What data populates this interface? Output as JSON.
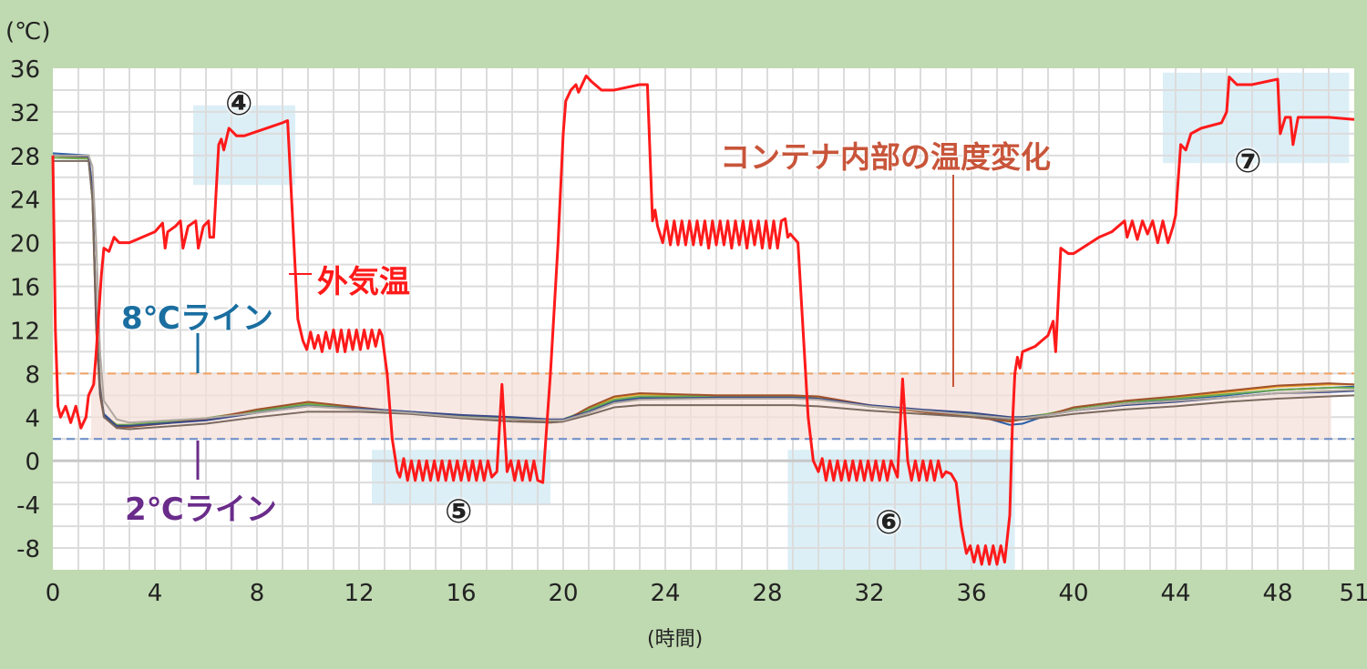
{
  "chart_data": {
    "type": "line",
    "ylabel": "(℃)",
    "xlabel": "(時間)",
    "xlim": [
      0,
      51
    ],
    "ylim": [
      -10,
      36
    ],
    "x_ticks": [
      0,
      4,
      8,
      12,
      16,
      20,
      24,
      28,
      32,
      36,
      40,
      44,
      48,
      51
    ],
    "y_ticks": [
      36,
      32,
      28,
      24,
      20,
      16,
      12,
      8,
      4,
      0,
      -4,
      -8
    ],
    "grid": true,
    "reference_lines": [
      {
        "label": "8℃ライン",
        "value": 8,
        "color": "#f0a060",
        "label_color": "#1a6ea0"
      },
      {
        "label": "2℃ライン",
        "value": 2,
        "color": "#6a8cc8",
        "label_color": "#6a2c8a"
      }
    ],
    "shaded_band": {
      "from": 2,
      "to": 8,
      "x_from": 1.5,
      "x_to": 50.1,
      "color": "#f5e0da"
    },
    "highlight_regions": [
      {
        "label": "④",
        "x": [
          5.5,
          9.5
        ],
        "y": [
          25.3,
          32.6
        ]
      },
      {
        "label": "⑤",
        "x": [
          12.5,
          19.5
        ],
        "y": [
          -4,
          1
        ]
      },
      {
        "label": "⑥",
        "x": [
          28.8,
          37.7
        ],
        "y": [
          -10,
          1
        ]
      },
      {
        "label": "⑦",
        "x": [
          43.5,
          50.8
        ],
        "y": [
          27.3,
          35.6
        ]
      }
    ],
    "annotations": {
      "outside": "外気温",
      "container": "コンテナ内部の温度変化"
    },
    "outside_series": {
      "name": "外気温",
      "color": "#ff1a1a",
      "points": [
        [
          0,
          28
        ],
        [
          0.1,
          12
        ],
        [
          0.2,
          5
        ],
        [
          0.3,
          4
        ],
        [
          0.5,
          5
        ],
        [
          0.7,
          3.5
        ],
        [
          0.9,
          5
        ],
        [
          1.1,
          3
        ],
        [
          1.3,
          4
        ],
        [
          1.4,
          6
        ],
        [
          1.6,
          7
        ],
        [
          1.7,
          10
        ],
        [
          1.9,
          17
        ],
        [
          2.0,
          19.5
        ],
        [
          2.2,
          19.2
        ],
        [
          2.4,
          20.5
        ],
        [
          2.6,
          20
        ],
        [
          3,
          20
        ],
        [
          3.5,
          20.5
        ],
        [
          4,
          21
        ],
        [
          4.3,
          21.8
        ],
        [
          4.4,
          19.5
        ],
        [
          4.5,
          21
        ],
        [
          4.8,
          21.5
        ],
        [
          5,
          22
        ],
        [
          5.1,
          19.5
        ],
        [
          5.3,
          21.5
        ],
        [
          5.6,
          22
        ],
        [
          5.7,
          19.5
        ],
        [
          5.9,
          21.5
        ],
        [
          6.1,
          22
        ],
        [
          6.15,
          20.5
        ],
        [
          6.3,
          20.5
        ],
        [
          6.5,
          29
        ],
        [
          6.6,
          29.5
        ],
        [
          6.7,
          28.5
        ],
        [
          6.9,
          30.5
        ],
        [
          7.2,
          29.8
        ],
        [
          7.5,
          29.8
        ],
        [
          8,
          30.2
        ],
        [
          8.5,
          30.6
        ],
        [
          9,
          31
        ],
        [
          9.2,
          31.2
        ],
        [
          9.4,
          22
        ],
        [
          9.6,
          13
        ],
        [
          9.7,
          12
        ],
        [
          9.8,
          11
        ],
        [
          9.95,
          10.2
        ],
        [
          10.1,
          11.8
        ],
        [
          10.25,
          10.3
        ],
        [
          10.4,
          11.5
        ],
        [
          10.55,
          10
        ],
        [
          10.7,
          11.8
        ],
        [
          10.85,
          10.3
        ],
        [
          11,
          12
        ],
        [
          11.15,
          10
        ],
        [
          11.3,
          12
        ],
        [
          11.45,
          10
        ],
        [
          11.6,
          12
        ],
        [
          11.75,
          10.2
        ],
        [
          11.9,
          12
        ],
        [
          12.05,
          10.2
        ],
        [
          12.2,
          12
        ],
        [
          12.35,
          10.3
        ],
        [
          12.5,
          12
        ],
        [
          12.65,
          10.5
        ],
        [
          12.8,
          12
        ],
        [
          12.9,
          11.5
        ],
        [
          13.1,
          8
        ],
        [
          13.3,
          2
        ],
        [
          13.5,
          -1
        ],
        [
          13.6,
          -1.5
        ],
        [
          13.75,
          0.2
        ],
        [
          13.9,
          -1.8
        ],
        [
          14.05,
          0
        ],
        [
          14.2,
          -1.8
        ],
        [
          14.35,
          0
        ],
        [
          14.5,
          -1.8
        ],
        [
          14.65,
          0
        ],
        [
          14.8,
          -1.8
        ],
        [
          14.95,
          0
        ],
        [
          15.1,
          -1.8
        ],
        [
          15.25,
          0
        ],
        [
          15.4,
          -1.8
        ],
        [
          15.55,
          0
        ],
        [
          15.7,
          -1.8
        ],
        [
          15.85,
          0
        ],
        [
          16,
          -1.8
        ],
        [
          16.15,
          0
        ],
        [
          16.3,
          -1.8
        ],
        [
          16.45,
          0
        ],
        [
          16.6,
          -1.8
        ],
        [
          16.75,
          0
        ],
        [
          16.9,
          -1.8
        ],
        [
          17.05,
          0
        ],
        [
          17.2,
          -1.5
        ],
        [
          17.4,
          -1
        ],
        [
          17.6,
          7
        ],
        [
          17.8,
          -1
        ],
        [
          17.95,
          0
        ],
        [
          18.1,
          -1.8
        ],
        [
          18.25,
          0
        ],
        [
          18.4,
          -1.8
        ],
        [
          18.55,
          0
        ],
        [
          18.7,
          -1.8
        ],
        [
          18.85,
          0
        ],
        [
          19,
          -1.8
        ],
        [
          19.2,
          -2
        ],
        [
          19.5,
          8
        ],
        [
          19.8,
          20
        ],
        [
          20,
          30
        ],
        [
          20.1,
          33
        ],
        [
          20.3,
          34
        ],
        [
          20.5,
          34.5
        ],
        [
          20.6,
          33.8
        ],
        [
          20.9,
          35.3
        ],
        [
          21.1,
          34.8
        ],
        [
          21.5,
          34
        ],
        [
          22,
          34
        ],
        [
          23,
          34.5
        ],
        [
          23.3,
          34.5
        ],
        [
          23.5,
          22
        ],
        [
          23.6,
          23
        ],
        [
          23.7,
          21.5
        ],
        [
          23.9,
          20
        ],
        [
          24.05,
          22
        ],
        [
          24.2,
          19.8
        ],
        [
          24.35,
          22
        ],
        [
          24.5,
          19.8
        ],
        [
          24.65,
          22
        ],
        [
          24.8,
          19.8
        ],
        [
          24.95,
          22
        ],
        [
          25.1,
          19.8
        ],
        [
          25.25,
          22
        ],
        [
          25.4,
          19.8
        ],
        [
          25.55,
          22
        ],
        [
          25.7,
          19.5
        ],
        [
          25.85,
          22
        ],
        [
          26,
          19.8
        ],
        [
          26.15,
          22
        ],
        [
          26.3,
          19.8
        ],
        [
          26.45,
          22
        ],
        [
          26.6,
          19.5
        ],
        [
          26.75,
          22
        ],
        [
          26.9,
          19.8
        ],
        [
          27.05,
          22
        ],
        [
          27.2,
          19.5
        ],
        [
          27.35,
          22
        ],
        [
          27.5,
          19.8
        ],
        [
          27.65,
          22
        ],
        [
          27.8,
          19.5
        ],
        [
          27.95,
          22
        ],
        [
          28.1,
          19.5
        ],
        [
          28.25,
          22
        ],
        [
          28.4,
          19.5
        ],
        [
          28.55,
          22
        ],
        [
          28.7,
          22.2
        ],
        [
          28.8,
          20.5
        ],
        [
          28.9,
          20.8
        ],
        [
          29.2,
          20
        ],
        [
          29.4,
          12
        ],
        [
          29.6,
          4
        ],
        [
          29.8,
          0
        ],
        [
          30,
          -1
        ],
        [
          30.15,
          0.2
        ],
        [
          30.3,
          -1.8
        ],
        [
          30.45,
          0
        ],
        [
          30.6,
          -1.8
        ],
        [
          30.75,
          0
        ],
        [
          30.9,
          -1.8
        ],
        [
          31.05,
          0
        ],
        [
          31.2,
          -1.8
        ],
        [
          31.35,
          0
        ],
        [
          31.5,
          -1.8
        ],
        [
          31.65,
          0
        ],
        [
          31.8,
          -1.8
        ],
        [
          31.95,
          0
        ],
        [
          32.1,
          -1.8
        ],
        [
          32.25,
          0
        ],
        [
          32.4,
          -1.8
        ],
        [
          32.55,
          0
        ],
        [
          32.7,
          -1.8
        ],
        [
          32.85,
          0
        ],
        [
          33.1,
          -1.5
        ],
        [
          33.3,
          7.5
        ],
        [
          33.5,
          0
        ],
        [
          33.65,
          -1.8
        ],
        [
          33.8,
          0
        ],
        [
          33.95,
          -1.8
        ],
        [
          34.1,
          0
        ],
        [
          34.25,
          -1.8
        ],
        [
          34.4,
          0
        ],
        [
          34.55,
          -1.8
        ],
        [
          34.7,
          0
        ],
        [
          34.85,
          -1.5
        ],
        [
          35,
          -1
        ],
        [
          35.2,
          -1.2
        ],
        [
          35.4,
          -2
        ],
        [
          35.6,
          -6
        ],
        [
          35.8,
          -8.5
        ],
        [
          35.95,
          -7.8
        ],
        [
          36.1,
          -9.3
        ],
        [
          36.25,
          -7.8
        ],
        [
          36.4,
          -9.5
        ],
        [
          36.55,
          -7.8
        ],
        [
          36.7,
          -9.5
        ],
        [
          36.85,
          -7.8
        ],
        [
          37,
          -9.5
        ],
        [
          37.15,
          -7.8
        ],
        [
          37.3,
          -9.3
        ],
        [
          37.5,
          -5
        ],
        [
          37.6,
          3
        ],
        [
          37.7,
          8
        ],
        [
          37.8,
          9.5
        ],
        [
          37.9,
          8.5
        ],
        [
          38,
          10
        ],
        [
          38.5,
          10.5
        ],
        [
          39,
          11.5
        ],
        [
          39.2,
          12.8
        ],
        [
          39.3,
          10
        ],
        [
          39.5,
          19.5
        ],
        [
          39.8,
          19
        ],
        [
          40,
          19
        ],
        [
          41,
          20.5
        ],
        [
          41.5,
          21
        ],
        [
          42,
          22
        ],
        [
          42.1,
          20.5
        ],
        [
          42.3,
          22
        ],
        [
          42.5,
          20.3
        ],
        [
          42.7,
          22
        ],
        [
          42.9,
          20.8
        ],
        [
          43.1,
          22
        ],
        [
          43.3,
          20
        ],
        [
          43.5,
          22
        ],
        [
          43.7,
          20
        ],
        [
          43.9,
          21.5
        ],
        [
          44,
          22.5
        ],
        [
          44.2,
          29
        ],
        [
          44.4,
          28.5
        ],
        [
          44.6,
          30
        ],
        [
          45,
          30.5
        ],
        [
          45.8,
          31
        ],
        [
          46,
          32
        ],
        [
          46.1,
          35.2
        ],
        [
          46.4,
          34.5
        ],
        [
          47,
          34.5
        ],
        [
          48,
          35
        ],
        [
          48.1,
          30
        ],
        [
          48.3,
          31.5
        ],
        [
          48.5,
          31.5
        ],
        [
          48.6,
          29
        ],
        [
          48.8,
          31.5
        ],
        [
          49,
          31.5
        ],
        [
          50,
          31.5
        ],
        [
          51,
          31.3
        ]
      ]
    },
    "container_x": [
      0,
      1.4,
      1.55,
      1.7,
      1.85,
      2,
      2.5,
      3,
      6,
      8,
      10,
      12,
      14,
      16,
      18,
      19.5,
      20,
      21,
      22,
      23,
      26,
      29,
      30,
      32,
      34,
      36,
      37.5,
      38,
      39,
      40,
      42,
      44,
      46,
      48,
      50,
      51
    ],
    "container_series": [
      {
        "color": "#e8a020",
        "values": [
          28,
          27.8,
          24,
          12,
          6,
          4.2,
          3.3,
          3.3,
          3.9,
          4.6,
          5.3,
          4.8,
          4.4,
          4.0,
          3.8,
          3.6,
          3.7,
          4.8,
          5.8,
          6.1,
          6.0,
          6.0,
          5.8,
          5.0,
          4.5,
          4.1,
          3.7,
          3.9,
          4.3,
          4.8,
          5.4,
          5.8,
          6.3,
          6.8,
          7.0,
          7.0
        ]
      },
      {
        "color": "#2a5fa8",
        "values": [
          28.2,
          28,
          25,
          13,
          6.5,
          4.3,
          3.2,
          3.2,
          3.8,
          4.5,
          5.1,
          4.8,
          4.5,
          4.1,
          3.8,
          3.7,
          3.7,
          4.5,
          5.5,
          5.8,
          5.9,
          5.9,
          5.7,
          5.0,
          4.6,
          4.3,
          3.3,
          3.4,
          4.2,
          4.6,
          5.2,
          5.6,
          6.0,
          6.5,
          6.7,
          6.8
        ]
      },
      {
        "color": "#6aa84f",
        "values": [
          27.8,
          27.7,
          24,
          12.5,
          6.2,
          4.1,
          3.3,
          3.3,
          3.9,
          4.6,
          5.2,
          4.8,
          4.4,
          4.1,
          3.9,
          3.7,
          3.8,
          4.7,
          5.6,
          5.9,
          5.9,
          5.9,
          5.7,
          5.0,
          4.6,
          4.3,
          3.9,
          4.0,
          4.3,
          4.8,
          5.4,
          5.7,
          6.1,
          6.5,
          6.7,
          6.7
        ]
      },
      {
        "color": "#a0522d",
        "values": [
          28,
          27.9,
          24.5,
          12,
          6,
          4.0,
          3.1,
          3.1,
          3.8,
          4.7,
          5.4,
          4.9,
          4.4,
          4.0,
          3.8,
          3.5,
          3.6,
          4.9,
          5.9,
          6.2,
          6.0,
          6.0,
          5.9,
          5.1,
          4.5,
          4.0,
          3.6,
          3.8,
          4.2,
          4.9,
          5.5,
          5.9,
          6.4,
          6.9,
          7.1,
          7.0
        ]
      },
      {
        "color": "#3a4a8a",
        "values": [
          28,
          27.9,
          24.8,
          13,
          6.4,
          4.2,
          3.2,
          3.2,
          3.7,
          4.4,
          5.0,
          4.8,
          4.5,
          4.2,
          4.0,
          3.8,
          3.8,
          4.5,
          5.4,
          5.7,
          5.8,
          5.8,
          5.7,
          5.1,
          4.7,
          4.4,
          4.0,
          4.0,
          4.2,
          4.6,
          5.1,
          5.4,
          5.8,
          6.2,
          6.3,
          6.4
        ]
      },
      {
        "color": "#7a6a60",
        "values": [
          27.5,
          27.5,
          24,
          14,
          7,
          4,
          3,
          2.9,
          3.4,
          4.0,
          4.5,
          4.5,
          4.3,
          3.9,
          3.6,
          3.5,
          3.6,
          4.2,
          4.9,
          5.1,
          5.1,
          5.1,
          5.0,
          4.6,
          4.3,
          4.0,
          3.8,
          3.8,
          4.0,
          4.3,
          4.7,
          5.0,
          5.4,
          5.7,
          5.9,
          6.0
        ]
      },
      {
        "color": "#b0a8a0",
        "values": [
          28,
          28,
          27,
          20,
          10,
          5.5,
          3.8,
          3.5,
          3.9,
          4.4,
          5.0,
          4.7,
          4.4,
          4.0,
          3.8,
          3.7,
          3.7,
          4.4,
          5.3,
          5.6,
          5.7,
          5.7,
          5.6,
          5.0,
          4.6,
          4.2,
          3.9,
          3.9,
          4.2,
          4.6,
          5.2,
          5.5,
          5.8,
          6.2,
          6.4,
          6.5
        ]
      }
    ]
  }
}
